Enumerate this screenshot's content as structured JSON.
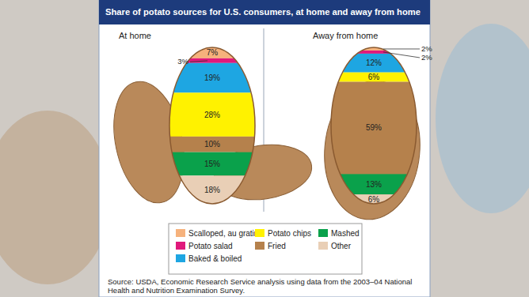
{
  "chart_data": {
    "type": "bar",
    "stacked": true,
    "title": "Share of potato sources for U.S. consumers, at home and away from home",
    "categories": [
      "At home",
      "Away from home"
    ],
    "ylim": [
      0,
      100
    ],
    "tick_labels": "x",
    "data_labels": true,
    "legend": "bottom",
    "series": [
      {
        "name": "Scalloped, au gratin",
        "color": "#f6b27c",
        "values": [
          7,
          2
        ],
        "value_labels": [
          "7%",
          "2%"
        ]
      },
      {
        "name": "Potato salad",
        "color": "#e0197b",
        "values": [
          3,
          2
        ],
        "value_labels": [
          "3%",
          "2%"
        ]
      },
      {
        "name": "Baked & boiled",
        "color": "#1ea6e2",
        "values": [
          19,
          12
        ],
        "value_labels": [
          "19%",
          "12%"
        ]
      },
      {
        "name": "Potato chips",
        "color": "#fff200",
        "values": [
          28,
          6
        ],
        "value_labels": [
          "28%",
          "6%"
        ]
      },
      {
        "name": "Fried",
        "color": "#b5814c",
        "values": [
          10,
          59
        ],
        "value_labels": [
          "10%",
          "59%"
        ]
      },
      {
        "name": "Mashed",
        "color": "#0aa14b",
        "values": [
          15,
          13
        ],
        "value_labels": [
          "15%",
          "13%"
        ]
      },
      {
        "name": "Other",
        "color": "#e9cfb6",
        "values": [
          18,
          6
        ],
        "value_labels": [
          "18%",
          "6%"
        ]
      }
    ],
    "source": "Source: USDA, Economic Research Service analysis using data from the 2003–04 National Health and Nutrition Examination Survey."
  }
}
